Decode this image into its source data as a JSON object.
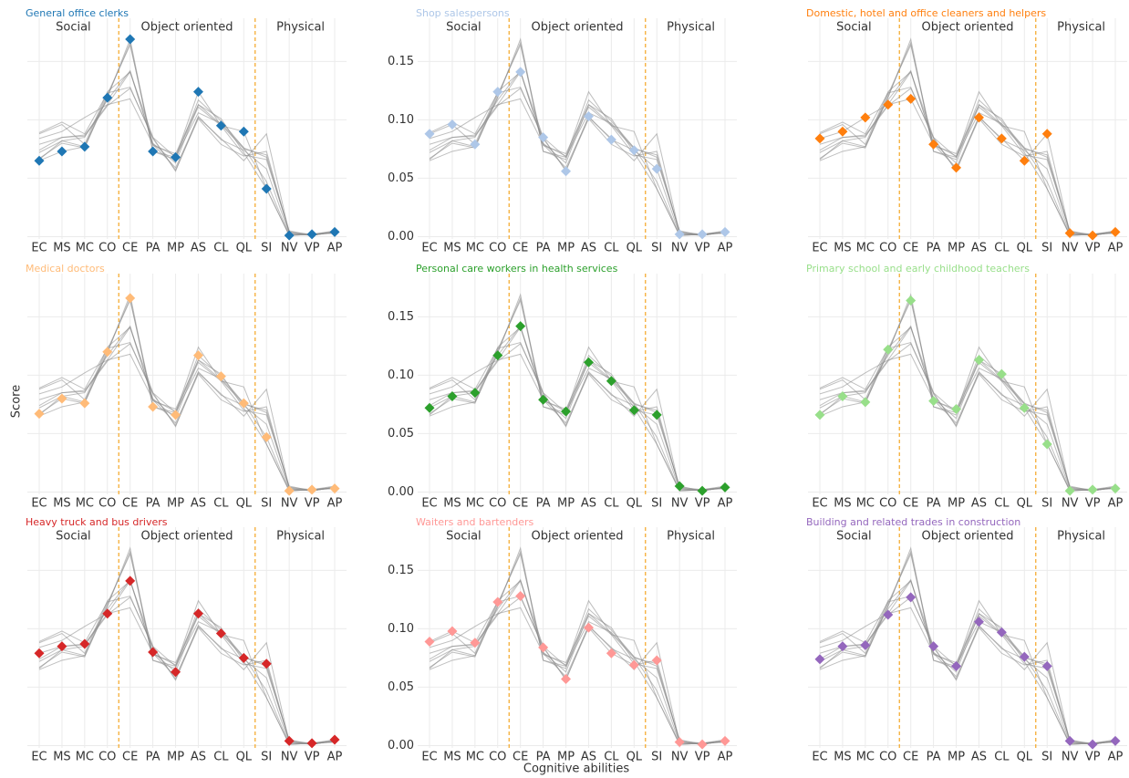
{
  "chart_data": {
    "type": "line",
    "x_label": "Cognitive abilities",
    "y_label": "Score",
    "categories": [
      "EC",
      "MS",
      "MC",
      "CO",
      "CE",
      "PA",
      "MP",
      "AS",
      "CL",
      "QL",
      "SI",
      "NV",
      "VP",
      "AP"
    ],
    "groups": [
      {
        "label": "Social",
        "count": 4
      },
      {
        "label": "Object oriented",
        "count": 6
      },
      {
        "label": "Physical",
        "count": 4
      }
    ],
    "ylim": [
      -0.002,
      0.187
    ],
    "yticks": [
      {
        "value": 0,
        "label": "0.00"
      },
      {
        "value": 0.05,
        "label": "0.05"
      },
      {
        "value": 0.1,
        "label": "0.10"
      },
      {
        "value": 0.15,
        "label": "0.15"
      }
    ],
    "grid": true,
    "background_line_color": "#8a8a8a",
    "divider_color": "#f5a623",
    "series": [
      {
        "name": "General office clerks",
        "color": "#1f77b4",
        "values": [
          0.065,
          0.073,
          0.077,
          0.119,
          0.169,
          0.073,
          0.068,
          0.124,
          0.095,
          0.09,
          0.041,
          0.001,
          0.002,
          0.004
        ]
      },
      {
        "name": "Shop salespersons",
        "color": "#aec7e8",
        "values": [
          0.088,
          0.096,
          0.079,
          0.124,
          0.141,
          0.085,
          0.056,
          0.103,
          0.083,
          0.074,
          0.058,
          0.002,
          0.002,
          0.004
        ]
      },
      {
        "name": "Domestic, hotel and office cleaners and helpers",
        "color": "#ff7f0e",
        "values": [
          0.084,
          0.09,
          0.102,
          0.113,
          0.118,
          0.079,
          0.059,
          0.102,
          0.084,
          0.065,
          0.088,
          0.003,
          0.001,
          0.004
        ]
      },
      {
        "name": "Medical doctors",
        "color": "#ffbb78",
        "values": [
          0.067,
          0.08,
          0.076,
          0.12,
          0.166,
          0.073,
          0.066,
          0.117,
          0.099,
          0.076,
          0.047,
          0.001,
          0.002,
          0.003
        ]
      },
      {
        "name": "Personal care workers in health services",
        "color": "#2ca02c",
        "values": [
          0.072,
          0.082,
          0.085,
          0.117,
          0.142,
          0.079,
          0.069,
          0.111,
          0.095,
          0.07,
          0.066,
          0.005,
          0.001,
          0.004
        ]
      },
      {
        "name": "Primary school and early childhood teachers",
        "color": "#98df8a",
        "values": [
          0.066,
          0.082,
          0.077,
          0.122,
          0.164,
          0.078,
          0.071,
          0.113,
          0.101,
          0.072,
          0.041,
          0.001,
          0.002,
          0.003
        ]
      },
      {
        "name": "Heavy truck and bus drivers",
        "color": "#d62728",
        "values": [
          0.079,
          0.085,
          0.087,
          0.113,
          0.141,
          0.08,
          0.063,
          0.113,
          0.096,
          0.075,
          0.07,
          0.004,
          0.002,
          0.005
        ]
      },
      {
        "name": "Waiters and bartenders",
        "color": "#ff9896",
        "values": [
          0.089,
          0.098,
          0.088,
          0.123,
          0.128,
          0.084,
          0.057,
          0.101,
          0.079,
          0.069,
          0.073,
          0.003,
          0.001,
          0.004
        ]
      },
      {
        "name": "Building and related trades in construction",
        "color": "#9467bd",
        "values": [
          0.074,
          0.085,
          0.086,
          0.112,
          0.127,
          0.085,
          0.068,
          0.106,
          0.097,
          0.076,
          0.068,
          0.004,
          0.001,
          0.004
        ]
      }
    ]
  }
}
